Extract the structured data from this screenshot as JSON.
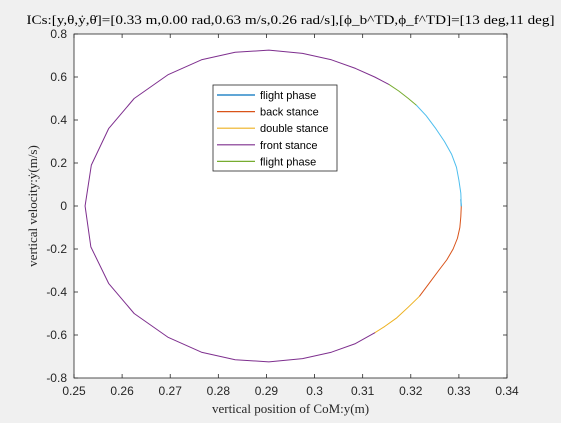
{
  "chart_data": {
    "type": "line",
    "title": "ICs:[y,θ,ẏ,θ̇]=[0.33 m,0.00 rad,0.63 m/s,0.26 rad/s],[ϕ_b^TD,ϕ_f^TD]=[13 deg,11 deg]",
    "xlabel": "vertical position of CoM:y(m)",
    "ylabel": "vertical velocity:ẏ(m/s)",
    "xlim": [
      0.25,
      0.34
    ],
    "ylim": [
      -0.8,
      0.8
    ],
    "xticks": [
      "0.25",
      "0.26",
      "0.27",
      "0.28",
      "0.29",
      "0.3",
      "0.31",
      "0.32",
      "0.33",
      "0.34"
    ],
    "yticks": [
      "-0.8",
      "-0.6",
      "-0.4",
      "-0.2",
      "0",
      "0.2",
      "0.4",
      "0.6",
      "0.8"
    ],
    "grid": false,
    "legend_position": "top-center",
    "series": [
      {
        "name": "flight phase",
        "color": "#0072bd",
        "x": [
          0.3305,
          0.3304
        ],
        "y": [
          0.0,
          0.03
        ]
      },
      {
        "name": "back stance",
        "color": "#d95319",
        "x": [
          0.3305,
          0.3304,
          0.3302,
          0.3297,
          0.3288,
          0.3275,
          0.3258,
          0.3238,
          0.3218
        ],
        "y": [
          0.0,
          -0.05,
          -0.1,
          -0.15,
          -0.2,
          -0.25,
          -0.3,
          -0.36,
          -0.42
        ]
      },
      {
        "name": "double stance",
        "color": "#edb120",
        "x": [
          0.3218,
          0.3195,
          0.3171,
          0.3146,
          0.3125
        ],
        "y": [
          -0.42,
          -0.47,
          -0.52,
          -0.56,
          -0.59
        ]
      },
      {
        "name": "front stance",
        "color": "#7e2f8e",
        "x": [
          0.3125,
          0.3085,
          0.3035,
          0.2975,
          0.2905,
          0.2835,
          0.2765,
          0.2695,
          0.2625,
          0.2572,
          0.2535,
          0.2523,
          0.2536,
          0.2572,
          0.2625,
          0.2695,
          0.2765,
          0.2835,
          0.2905,
          0.2975,
          0.3035,
          0.3085,
          0.3125,
          0.3155
        ],
        "y": [
          -0.59,
          -0.64,
          -0.68,
          -0.71,
          -0.725,
          -0.715,
          -0.68,
          -0.61,
          -0.5,
          -0.36,
          -0.19,
          0.0,
          0.19,
          0.36,
          0.5,
          0.61,
          0.68,
          0.715,
          0.725,
          0.71,
          0.68,
          0.64,
          0.6,
          0.565
        ]
      },
      {
        "name": "flight phase",
        "color": "#77ac30",
        "x": [
          0.3155,
          0.3175,
          0.3195,
          0.3212
        ],
        "y": [
          0.565,
          0.535,
          0.5,
          0.468
        ]
      },
      {
        "name": "",
        "color": "#4dbeee",
        "x": [
          0.3212,
          0.3232,
          0.3252,
          0.327,
          0.3285,
          0.3295,
          0.33,
          0.3304,
          0.3305
        ],
        "y": [
          0.468,
          0.42,
          0.36,
          0.3,
          0.24,
          0.18,
          0.12,
          0.06,
          0.0
        ]
      }
    ],
    "legend_entries": [
      {
        "name": "flight phase",
        "color": "#0072bd"
      },
      {
        "name": "back stance",
        "color": "#d95319"
      },
      {
        "name": "double stance",
        "color": "#edb120"
      },
      {
        "name": "front stance",
        "color": "#7e2f8e"
      },
      {
        "name": "flight phase",
        "color": "#77ac30"
      }
    ]
  }
}
